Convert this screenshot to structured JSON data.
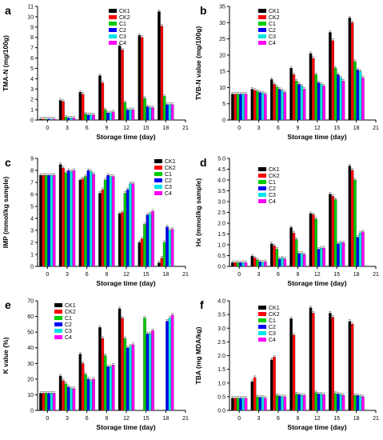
{
  "figure": {
    "series_names": [
      "CK1",
      "CK2",
      "C1",
      "C2",
      "C3",
      "C4"
    ],
    "colors": {
      "CK1": "#000000",
      "CK2": "#ff0000",
      "C1": "#00cc00",
      "C2": "#0000ff",
      "C3": "#00e5e5",
      "C4": "#ff00ff"
    }
  },
  "chart_data": [
    {
      "panel": "a",
      "type": "bar",
      "ylabel": "TMA-N (mg/100g)",
      "xlabel": "Storage time (day)",
      "ylim": [
        0,
        11
      ],
      "yticks": [
        0,
        1,
        2,
        3,
        4,
        5,
        6,
        7,
        8,
        9,
        10,
        11
      ],
      "xlim": [
        -1.5,
        21
      ],
      "xticks": [
        0,
        3,
        6,
        9,
        12,
        15,
        18,
        21
      ],
      "x": [
        0,
        3,
        6,
        9,
        12,
        15,
        18
      ],
      "legend": "top-left",
      "series": [
        {
          "name": "CK1",
          "values": [
            0.1,
            1.9,
            2.7,
            4.3,
            7.2,
            8.2,
            10.5
          ]
        },
        {
          "name": "CK2",
          "values": [
            0.1,
            1.8,
            2.5,
            3.6,
            6.8,
            8.0,
            9.1
          ]
        },
        {
          "name": "C1",
          "values": [
            0.1,
            0.3,
            0.6,
            1.0,
            1.7,
            2.1,
            2.3
          ]
        },
        {
          "name": "C2",
          "values": [
            0.1,
            0.2,
            0.5,
            0.7,
            1.0,
            1.3,
            1.5
          ]
        },
        {
          "name": "C3",
          "values": [
            0.1,
            0.2,
            0.5,
            0.7,
            1.0,
            1.2,
            1.5
          ]
        },
        {
          "name": "C4",
          "values": [
            0.1,
            0.2,
            0.5,
            0.8,
            1.0,
            1.2,
            1.5
          ]
        }
      ]
    },
    {
      "panel": "b",
      "type": "bar",
      "ylabel": "TVB-N value (mg/100g)",
      "xlabel": "Storage time (day)",
      "ylim": [
        0,
        35
      ],
      "yticks": [
        0,
        5,
        10,
        15,
        20,
        25,
        30,
        35
      ],
      "xlim": [
        -1.5,
        21
      ],
      "xticks": [
        0,
        3,
        6,
        9,
        12,
        15,
        18,
        21
      ],
      "x": [
        0,
        3,
        6,
        9,
        12,
        15,
        18
      ],
      "legend": "top-right",
      "series": [
        {
          "name": "CK1",
          "values": [
            8.0,
            9.5,
            12.5,
            16.0,
            20.5,
            27.0,
            31.5
          ]
        },
        {
          "name": "CK2",
          "values": [
            8.0,
            9.2,
            11.0,
            14.0,
            19.0,
            24.5,
            30.0
          ]
        },
        {
          "name": "C1",
          "values": [
            8.0,
            8.8,
            10.2,
            12.0,
            14.0,
            16.0,
            18.0
          ]
        },
        {
          "name": "C2",
          "values": [
            8.0,
            8.5,
            9.5,
            11.0,
            11.5,
            14.0,
            15.5
          ]
        },
        {
          "name": "C3",
          "values": [
            8.0,
            8.3,
            9.0,
            10.5,
            11.0,
            13.0,
            15.0
          ]
        },
        {
          "name": "C4",
          "values": [
            8.0,
            8.0,
            8.5,
            9.5,
            10.5,
            12.0,
            13.0
          ]
        }
      ]
    },
    {
      "panel": "c",
      "type": "bar",
      "ylabel": "IMP (mmol/kg sample)",
      "xlabel": "Storage time (day)",
      "ylim": [
        0,
        9
      ],
      "yticks": [
        0,
        1,
        2,
        3,
        4,
        5,
        6,
        7,
        8,
        9
      ],
      "xlim": [
        -1.5,
        21
      ],
      "xticks": [
        0,
        3,
        6,
        9,
        12,
        15,
        18,
        21
      ],
      "x": [
        0,
        3,
        6,
        9,
        12,
        15,
        18
      ],
      "legend": "top-right",
      "series": [
        {
          "name": "CK1",
          "values": [
            7.6,
            8.5,
            7.2,
            6.1,
            4.4,
            2.0,
            0.3
          ]
        },
        {
          "name": "CK2",
          "values": [
            7.6,
            8.2,
            7.3,
            6.4,
            4.5,
            2.3,
            0.7
          ]
        },
        {
          "name": "C1",
          "values": [
            7.6,
            7.8,
            7.5,
            7.2,
            6.1,
            3.5,
            2.0
          ]
        },
        {
          "name": "C2",
          "values": [
            7.6,
            8.0,
            8.0,
            7.6,
            6.4,
            4.3,
            3.3
          ]
        },
        {
          "name": "C3",
          "values": [
            7.6,
            7.9,
            7.9,
            7.5,
            6.9,
            4.4,
            3.0
          ]
        },
        {
          "name": "C4",
          "values": [
            7.6,
            8.0,
            7.7,
            7.5,
            6.9,
            4.6,
            3.1
          ]
        }
      ]
    },
    {
      "panel": "d",
      "type": "bar",
      "ylabel": "Hx (mmol/kg sample)",
      "xlabel": "Storage time (day)",
      "ylim": [
        0,
        5
      ],
      "yticks": [
        0,
        0.5,
        1.0,
        1.5,
        2.0,
        2.5,
        3.0,
        3.5,
        4.0,
        4.5,
        5.0
      ],
      "xlim": [
        -1.5,
        21
      ],
      "xticks": [
        0,
        3,
        6,
        9,
        12,
        15,
        18,
        21
      ],
      "x": [
        0,
        3,
        6,
        9,
        12,
        15,
        18
      ],
      "legend": "top-left",
      "series": [
        {
          "name": "CK1",
          "values": [
            0.18,
            0.48,
            1.05,
            1.8,
            2.45,
            3.35,
            4.65
          ]
        },
        {
          "name": "CK2",
          "values": [
            0.18,
            0.4,
            0.95,
            1.55,
            2.4,
            3.25,
            4.45
          ]
        },
        {
          "name": "C1",
          "values": [
            0.18,
            0.3,
            0.8,
            1.25,
            2.2,
            3.1,
            4.0
          ]
        },
        {
          "name": "C2",
          "values": [
            0.18,
            0.22,
            0.35,
            0.6,
            0.8,
            1.05,
            1.35
          ]
        },
        {
          "name": "C3",
          "values": [
            0.18,
            0.2,
            0.4,
            0.6,
            0.85,
            1.1,
            1.55
          ]
        },
        {
          "name": "C4",
          "values": [
            0.18,
            0.22,
            0.35,
            0.55,
            0.85,
            1.1,
            1.6
          ]
        }
      ]
    },
    {
      "panel": "e",
      "type": "bar",
      "ylabel": "K value (%)",
      "xlabel": "Storage time (day)",
      "ylim": [
        0,
        70
      ],
      "yticks": [
        0,
        10,
        20,
        30,
        40,
        50,
        60,
        70
      ],
      "xlim": [
        -1.5,
        21
      ],
      "xticks": [
        0,
        3,
        6,
        9,
        12,
        15,
        18,
        21
      ],
      "x": [
        0,
        3,
        6,
        9,
        12,
        15,
        18
      ],
      "legend": "top-left",
      "series": [
        {
          "name": "CK1",
          "values": [
            11,
            22,
            36,
            53,
            65,
            null,
            null
          ]
        },
        {
          "name": "CK2",
          "values": [
            11,
            19,
            30,
            46,
            59,
            null,
            null
          ]
        },
        {
          "name": "C1",
          "values": [
            11,
            17,
            23,
            35,
            46,
            59,
            null
          ]
        },
        {
          "name": "C2",
          "values": [
            11,
            15,
            20,
            28,
            40,
            49,
            57
          ]
        },
        {
          "name": "C3",
          "values": [
            11,
            14,
            19,
            28,
            41,
            49,
            59
          ]
        },
        {
          "name": "C4",
          "values": [
            11,
            14,
            20,
            29,
            42,
            51,
            61
          ]
        }
      ]
    },
    {
      "panel": "f",
      "type": "bar",
      "ylabel": "TBA (mg MDA/kg)",
      "xlabel": "Storage time (day)",
      "ylim": [
        0,
        4
      ],
      "yticks": [
        0,
        0.5,
        1.0,
        1.5,
        2.0,
        2.5,
        3.0,
        3.5,
        4.0
      ],
      "xlim": [
        -1.5,
        21
      ],
      "xticks": [
        0,
        3,
        6,
        9,
        12,
        15,
        18,
        21
      ],
      "x": [
        0,
        3,
        6,
        9,
        12,
        15,
        18
      ],
      "legend": "top-left",
      "series": [
        {
          "name": "CK1",
          "values": [
            0.45,
            1.05,
            1.85,
            3.35,
            3.75,
            3.55,
            3.25
          ]
        },
        {
          "name": "CK2",
          "values": [
            0.45,
            1.2,
            1.95,
            2.75,
            3.55,
            3.4,
            3.15
          ]
        },
        {
          "name": "C1",
          "values": [
            0.45,
            0.5,
            0.55,
            0.6,
            0.65,
            0.62,
            0.55
          ]
        },
        {
          "name": "C2",
          "values": [
            0.45,
            0.48,
            0.52,
            0.58,
            0.6,
            0.6,
            0.55
          ]
        },
        {
          "name": "C3",
          "values": [
            0.45,
            0.48,
            0.5,
            0.55,
            0.6,
            0.58,
            0.52
          ]
        },
        {
          "name": "C4",
          "values": [
            0.45,
            0.45,
            0.5,
            0.55,
            0.58,
            0.55,
            0.5
          ]
        }
      ]
    }
  ]
}
